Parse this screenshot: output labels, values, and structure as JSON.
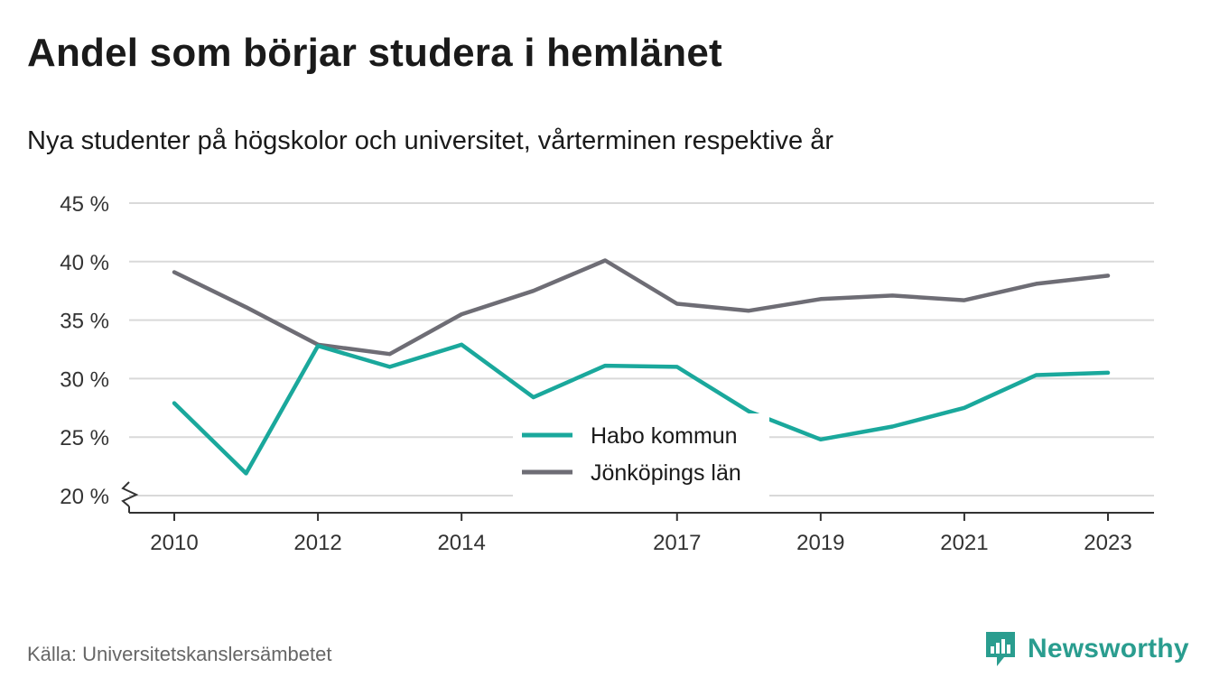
{
  "header": {
    "title": "Andel som börjar studera i hemlänet",
    "subtitle": "Nya studenter på högskolor och universitet, vårterminen respektive år"
  },
  "footer": {
    "source": "Källa: Universitetskanslersämbetet",
    "brand": "Newsworthy"
  },
  "colors": {
    "series1": "#1aa89c",
    "series2": "#6e6d75",
    "grid": "#d9d9d9",
    "axis": "#333333",
    "brand": "#2a9d8f"
  },
  "chart_data": {
    "type": "line",
    "title": "Andel som börjar studera i hemlänet",
    "subtitle": "Nya studenter på högskolor och universitet, vårterminen respektive år",
    "x": [
      2010,
      2011,
      2012,
      2013,
      2014,
      2015,
      2016,
      2017,
      2018,
      2019,
      2020,
      2021,
      2022,
      2023
    ],
    "x_tick_labels": [
      "2010",
      "2012",
      "2014",
      "2017",
      "2019",
      "2021",
      "2023"
    ],
    "y_tick_labels": [
      "45 %",
      "40 %",
      "35 %",
      "30 %",
      "25 %",
      "20 %"
    ],
    "y_ticks": [
      45,
      40,
      35,
      30,
      25,
      20
    ],
    "ylim": [
      20,
      45
    ],
    "y_axis_break": true,
    "grid": true,
    "legend_position": "bottom-center",
    "series": [
      {
        "name": "Habo kommun",
        "color": "#1aa89c",
        "values": [
          27.9,
          21.9,
          32.8,
          31.0,
          32.9,
          28.4,
          31.1,
          31.0,
          27.2,
          24.8,
          25.9,
          27.5,
          30.3,
          30.5
        ]
      },
      {
        "name": "Jönköpings län",
        "color": "#6e6d75",
        "values": [
          39.1,
          36.1,
          32.9,
          32.1,
          35.5,
          37.5,
          40.1,
          36.4,
          35.8,
          36.8,
          37.1,
          36.7,
          38.1,
          38.8
        ]
      }
    ]
  }
}
